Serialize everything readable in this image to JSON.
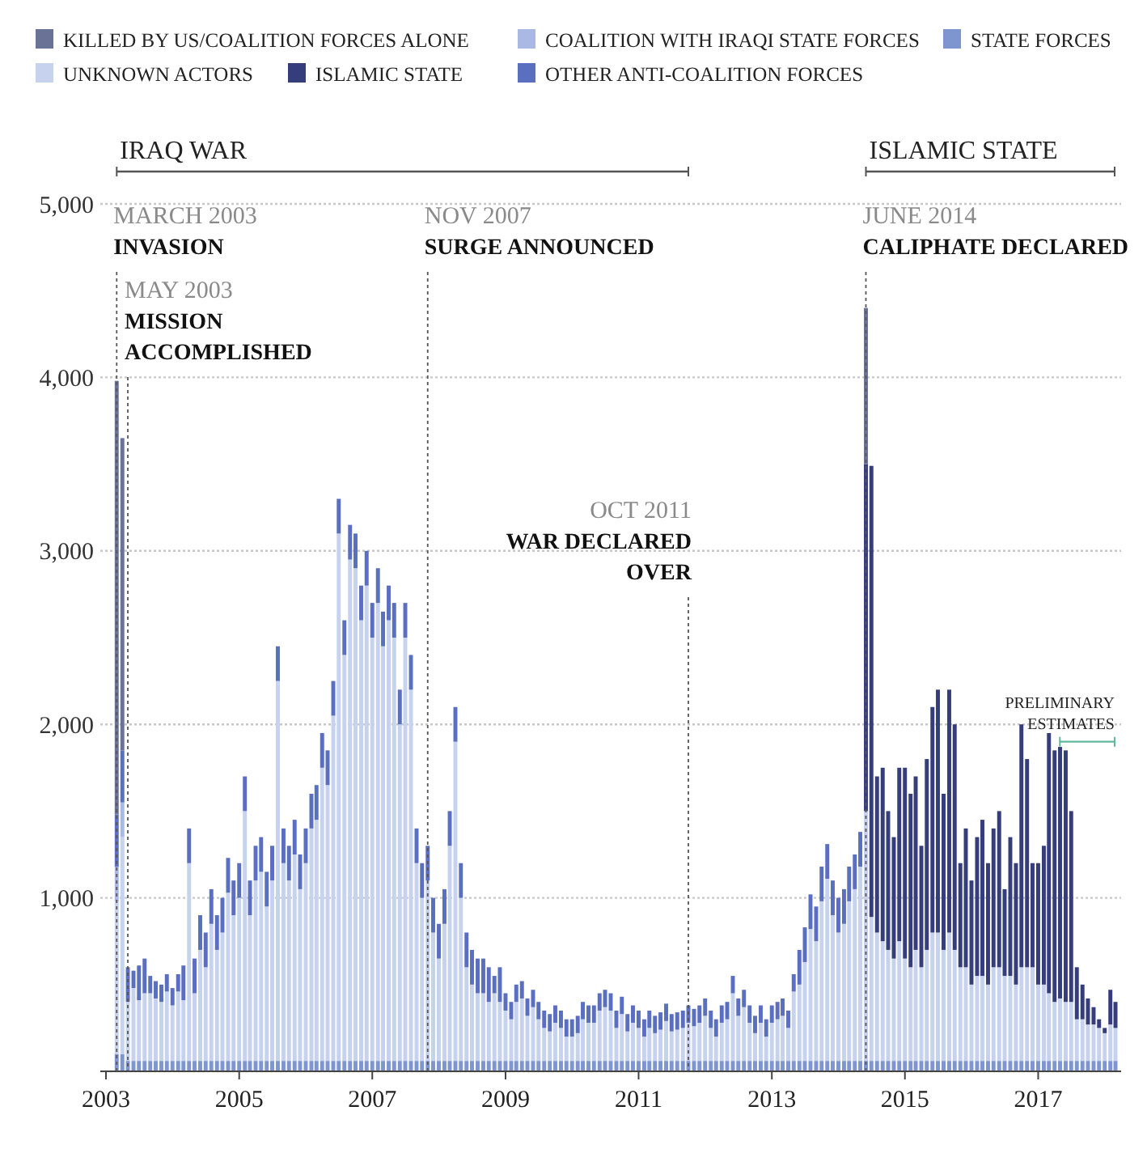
{
  "chart_data": {
    "type": "bar",
    "stacked": true,
    "x": [
      "2003-03",
      "2003-04",
      "2003-05",
      "2003-06",
      "2003-07",
      "2003-08",
      "2003-09",
      "2003-10",
      "2003-11",
      "2003-12",
      "2004-01",
      "2004-02",
      "2004-03",
      "2004-04",
      "2004-05",
      "2004-06",
      "2004-07",
      "2004-08",
      "2004-09",
      "2004-10",
      "2004-11",
      "2004-12",
      "2005-01",
      "2005-02",
      "2005-03",
      "2005-04",
      "2005-05",
      "2005-06",
      "2005-07",
      "2005-08",
      "2005-09",
      "2005-10",
      "2005-11",
      "2005-12",
      "2006-01",
      "2006-02",
      "2006-03",
      "2006-04",
      "2006-05",
      "2006-06",
      "2006-07",
      "2006-08",
      "2006-09",
      "2006-10",
      "2006-11",
      "2006-12",
      "2007-01",
      "2007-02",
      "2007-03",
      "2007-04",
      "2007-05",
      "2007-06",
      "2007-07",
      "2007-08",
      "2007-09",
      "2007-10",
      "2007-11",
      "2007-12",
      "2008-01",
      "2008-02",
      "2008-03",
      "2008-04",
      "2008-05",
      "2008-06",
      "2008-07",
      "2008-08",
      "2008-09",
      "2008-10",
      "2008-11",
      "2008-12",
      "2009-01",
      "2009-02",
      "2009-03",
      "2009-04",
      "2009-05",
      "2009-06",
      "2009-07",
      "2009-08",
      "2009-09",
      "2009-10",
      "2009-11",
      "2009-12",
      "2010-01",
      "2010-02",
      "2010-03",
      "2010-04",
      "2010-05",
      "2010-06",
      "2010-07",
      "2010-08",
      "2010-09",
      "2010-10",
      "2010-11",
      "2010-12",
      "2011-01",
      "2011-02",
      "2011-03",
      "2011-04",
      "2011-05",
      "2011-06",
      "2011-07",
      "2011-08",
      "2011-09",
      "2011-10",
      "2011-11",
      "2011-12",
      "2012-01",
      "2012-02",
      "2012-03",
      "2012-04",
      "2012-05",
      "2012-06",
      "2012-07",
      "2012-08",
      "2012-09",
      "2012-10",
      "2012-11",
      "2012-12",
      "2013-01",
      "2013-02",
      "2013-03",
      "2013-04",
      "2013-05",
      "2013-06",
      "2013-07",
      "2013-08",
      "2013-09",
      "2013-10",
      "2013-11",
      "2013-12",
      "2014-01",
      "2014-02",
      "2014-03",
      "2014-04",
      "2014-05",
      "2014-06",
      "2014-07",
      "2014-08",
      "2014-09",
      "2014-10",
      "2014-11",
      "2014-12",
      "2015-01",
      "2015-02",
      "2015-03",
      "2015-04",
      "2015-05",
      "2015-06",
      "2015-07",
      "2015-08",
      "2015-09",
      "2015-10",
      "2015-11",
      "2015-12",
      "2016-01",
      "2016-02",
      "2016-03",
      "2016-04",
      "2016-05",
      "2016-06",
      "2016-07",
      "2016-08",
      "2016-09",
      "2016-10",
      "2016-11",
      "2016-12",
      "2017-01",
      "2017-02",
      "2017-03",
      "2017-04",
      "2017-05",
      "2017-06",
      "2017-07",
      "2017-08",
      "2017-09",
      "2017-10",
      "2017-11",
      "2017-12",
      "2018-01",
      "2018-02",
      "2018-03"
    ],
    "series": [
      {
        "name": "STATE FORCES",
        "color": "#7f95d0",
        "values": [
          100,
          100,
          60,
          60,
          60,
          60,
          60,
          60,
          60,
          60,
          60,
          60,
          60,
          60,
          60,
          60,
          60,
          60,
          60,
          60,
          60,
          60,
          60,
          60,
          60,
          60,
          60,
          60,
          60,
          60,
          60,
          60,
          60,
          60,
          60,
          60,
          60,
          60,
          60,
          60,
          60,
          60,
          60,
          60,
          60,
          60,
          60,
          60,
          60,
          60,
          60,
          60,
          60,
          60,
          60,
          60,
          60,
          60,
          60,
          60,
          60,
          60,
          60,
          60,
          60,
          60,
          60,
          60,
          60,
          60,
          60,
          60,
          60,
          60,
          60,
          60,
          60,
          60,
          60,
          60,
          60,
          60,
          60,
          60,
          60,
          60,
          60,
          60,
          60,
          60,
          60,
          60,
          60,
          60,
          60,
          60,
          60,
          60,
          60,
          60,
          60,
          60,
          60,
          60,
          60,
          60,
          60,
          60,
          60,
          60,
          60,
          60,
          60,
          60,
          60,
          60,
          60,
          60,
          60,
          60,
          60,
          60,
          60,
          60,
          60,
          60,
          60,
          60,
          60,
          60,
          60,
          60,
          60,
          60,
          60,
          60,
          60,
          60,
          60,
          60,
          60,
          60,
          60,
          60,
          60,
          60,
          60,
          60,
          60,
          60,
          60,
          60,
          60,
          60,
          60,
          60,
          60,
          60,
          60,
          60,
          60,
          60,
          60,
          60,
          60,
          60,
          60,
          60,
          60,
          60,
          60,
          60,
          60,
          60,
          60,
          60,
          60,
          60,
          60,
          60,
          60
        ]
      },
      {
        "name": "UNKNOWN ACTORS",
        "color": "#c6d2ee",
        "values": [
          880,
          1250,
          340,
          420,
          350,
          390,
          390,
          360,
          340,
          400,
          320,
          400,
          350,
          1140,
          390,
          640,
          540,
          790,
          640,
          740,
          970,
          840,
          940,
          1440,
          840,
          1040,
          1090,
          890,
          1040,
          2190,
          1140,
          1040,
          1190,
          990,
          1140,
          1340,
          1390,
          1690,
          1590,
          1990,
          3040,
          2340,
          2890,
          2840,
          2540,
          2740,
          2440,
          2640,
          2390,
          2540,
          2440,
          1940,
          2440,
          2140,
          1140,
          940,
          1040,
          740,
          590,
          790,
          1240,
          1840,
          940,
          540,
          440,
          390,
          390,
          340,
          390,
          340,
          290,
          240,
          340,
          360,
          260,
          310,
          240,
          190,
          170,
          220,
          190,
          140,
          140,
          160,
          240,
          220,
          220,
          290,
          310,
          290,
          190,
          270,
          170,
          220,
          190,
          140,
          190,
          160,
          180,
          230,
          170,
          180,
          190,
          220,
          200,
          220,
          260,
          190,
          140,
          220,
          240,
          390,
          260,
          310,
          220,
          160,
          220,
          140,
          220,
          240,
          260,
          190,
          400,
          440,
          570,
          760,
          690,
          920,
          1050,
          840,
          740,
          790,
          920,
          990,
          1120,
          1440,
          830,
          740,
          690,
          640,
          590,
          690,
          590,
          540,
          640,
          540,
          640,
          740,
          740,
          640,
          740,
          640,
          540,
          540,
          440,
          490,
          490,
          440,
          540,
          540,
          490,
          490,
          440,
          540,
          540,
          540,
          440,
          440,
          390,
          340,
          360,
          340,
          340,
          240,
          240,
          210,
          210,
          190,
          160,
          210,
          190
        ]
      },
      {
        "name": "COALITION WITH IRAQI STATE FORCES",
        "color": "#a9b9e3",
        "values": [
          200,
          200,
          null,
          null,
          null,
          null,
          null,
          null,
          null,
          null,
          null,
          null,
          null,
          null,
          null,
          null,
          null,
          null,
          null,
          null,
          null,
          null,
          null,
          null,
          null,
          null,
          null,
          null,
          null,
          null,
          null,
          null,
          null,
          null,
          null,
          null,
          null,
          null,
          null,
          null,
          null,
          null,
          null,
          null,
          null,
          null,
          null,
          null,
          null,
          null,
          null,
          null,
          null,
          null,
          null,
          null,
          null,
          null,
          null,
          null,
          null,
          null,
          null,
          null,
          null,
          null,
          null,
          null,
          null,
          null,
          null,
          null,
          null,
          null,
          null,
          null,
          null,
          null,
          null,
          null,
          null,
          null,
          null,
          null,
          null,
          null,
          null,
          null,
          null,
          null,
          null,
          null,
          null,
          null,
          null,
          null,
          null,
          null,
          null,
          null,
          null,
          null,
          null,
          null,
          null,
          null,
          null,
          null,
          null,
          null,
          null,
          null,
          null,
          null,
          null,
          null,
          null,
          null,
          null,
          null,
          null,
          null,
          null,
          null,
          null,
          null,
          null,
          null,
          null,
          null,
          null,
          null,
          null,
          null,
          null,
          null,
          null,
          null,
          null,
          null,
          null,
          null,
          null,
          null,
          null,
          null,
          null,
          null,
          null,
          null,
          null,
          null,
          null,
          null,
          null,
          null,
          null,
          null,
          null,
          null,
          null,
          null,
          null,
          null,
          null,
          null,
          null,
          null,
          null,
          null,
          null,
          null,
          null,
          null,
          null,
          null,
          null,
          null,
          null,
          null,
          null
        ]
      },
      {
        "name": "OTHER ANTI-COALITION FORCES",
        "color": "#5a6fc0",
        "values": [
          300,
          300,
          200,
          100,
          200,
          200,
          100,
          100,
          100,
          100,
          100,
          100,
          200,
          200,
          200,
          200,
          200,
          200,
          200,
          200,
          200,
          200,
          200,
          200,
          200,
          200,
          200,
          200,
          200,
          200,
          200,
          200,
          200,
          200,
          200,
          200,
          200,
          200,
          200,
          200,
          200,
          200,
          200,
          200,
          200,
          200,
          200,
          200,
          200,
          200,
          200,
          200,
          200,
          200,
          200,
          200,
          200,
          200,
          200,
          200,
          200,
          200,
          200,
          200,
          200,
          200,
          200,
          200,
          100,
          200,
          100,
          100,
          100,
          100,
          100,
          100,
          100,
          100,
          100,
          100,
          100,
          100,
          100,
          100,
          100,
          100,
          100,
          100,
          100,
          100,
          100,
          100,
          100,
          100,
          100,
          100,
          100,
          100,
          100,
          100,
          100,
          100,
          100,
          100,
          100,
          100,
          100,
          100,
          100,
          100,
          100,
          100,
          100,
          100,
          100,
          100,
          100,
          100,
          100,
          100,
          100,
          100,
          100,
          200,
          200,
          200,
          200,
          200,
          200,
          200,
          200,
          200,
          200,
          200,
          200,
          null,
          null,
          null,
          null,
          null,
          null,
          null,
          null,
          null,
          null,
          null,
          null,
          null,
          null,
          null,
          null,
          null,
          null,
          null,
          null,
          null,
          null,
          null,
          null,
          null,
          null,
          null,
          null,
          null,
          null,
          null,
          null,
          null,
          null,
          null,
          null,
          null,
          null,
          null,
          null,
          null,
          null,
          null,
          null,
          null,
          null
        ]
      },
      {
        "name": "ISLAMIC STATE",
        "color": "#353d7a",
        "values": [
          null,
          null,
          null,
          null,
          null,
          null,
          null,
          null,
          null,
          null,
          null,
          null,
          null,
          null,
          null,
          null,
          null,
          null,
          null,
          null,
          null,
          null,
          null,
          null,
          null,
          null,
          null,
          null,
          null,
          null,
          null,
          null,
          null,
          null,
          null,
          null,
          null,
          null,
          null,
          null,
          null,
          null,
          null,
          null,
          null,
          null,
          null,
          null,
          null,
          null,
          null,
          null,
          null,
          null,
          null,
          null,
          null,
          null,
          null,
          null,
          null,
          null,
          null,
          null,
          null,
          null,
          null,
          null,
          null,
          null,
          null,
          null,
          null,
          null,
          null,
          null,
          null,
          null,
          null,
          null,
          null,
          null,
          null,
          null,
          null,
          null,
          null,
          null,
          null,
          null,
          null,
          null,
          null,
          null,
          null,
          null,
          null,
          null,
          null,
          null,
          null,
          null,
          null,
          null,
          null,
          null,
          null,
          null,
          null,
          null,
          null,
          null,
          null,
          null,
          null,
          null,
          null,
          null,
          null,
          null,
          null,
          null,
          null,
          null,
          null,
          null,
          null,
          null,
          null,
          null,
          null,
          null,
          null,
          null,
          null,
          2000,
          2600,
          900,
          1000,
          800,
          700,
          1000,
          1100,
          1000,
          1000,
          700,
          1100,
          1300,
          1400,
          900,
          1400,
          1300,
          600,
          800,
          600,
          800,
          900,
          700,
          800,
          900,
          500,
          800,
          700,
          1400,
          1200,
          600,
          700,
          800,
          1500,
          1450,
          1450,
          1450,
          1100,
          300,
          200,
          150,
          100,
          50,
          30,
          200,
          150
        ]
      },
      {
        "name": "KILLED BY US/COALITION FORCES ALONE",
        "color": "#6a7396",
        "values": [
          2500,
          1800,
          null,
          null,
          null,
          null,
          null,
          null,
          null,
          null,
          null,
          null,
          null,
          null,
          null,
          null,
          null,
          null,
          null,
          null,
          null,
          null,
          null,
          null,
          null,
          null,
          null,
          null,
          null,
          null,
          null,
          null,
          null,
          null,
          null,
          null,
          null,
          null,
          null,
          null,
          null,
          null,
          null,
          null,
          null,
          null,
          null,
          null,
          null,
          null,
          null,
          null,
          null,
          null,
          null,
          null,
          null,
          null,
          null,
          null,
          null,
          null,
          null,
          null,
          null,
          null,
          null,
          null,
          null,
          null,
          null,
          null,
          null,
          null,
          null,
          null,
          null,
          null,
          null,
          null,
          null,
          null,
          null,
          null,
          null,
          null,
          null,
          null,
          null,
          null,
          null,
          null,
          null,
          null,
          null,
          null,
          null,
          null,
          null,
          null,
          null,
          null,
          null,
          null,
          null,
          null,
          null,
          null,
          null,
          null,
          null,
          null,
          null,
          null,
          null,
          null,
          null,
          null,
          null,
          null,
          null,
          null,
          null,
          null,
          null,
          null,
          null,
          null,
          null,
          null,
          null,
          null,
          null,
          null,
          null,
          900,
          null,
          null,
          null,
          null,
          null,
          null,
          null,
          null,
          null,
          null,
          null,
          null,
          null,
          null,
          null,
          null,
          null,
          null,
          null,
          null,
          null,
          null,
          null,
          null,
          null,
          null,
          null,
          null,
          null,
          null,
          null,
          null,
          null,
          null,
          null,
          null,
          null,
          null,
          null,
          null,
          null,
          null,
          null,
          null,
          null
        ]
      }
    ],
    "xlim": [
      "2002-12",
      "2018-04"
    ],
    "xticks": [
      "2003",
      "2005",
      "2007",
      "2009",
      "2011",
      "2013",
      "2015",
      "2017"
    ],
    "ylim": [
      0,
      5000
    ],
    "yticks": [
      {
        "value": 0,
        "label": null
      },
      {
        "value": 1000,
        "label": "1,000"
      },
      {
        "value": 2000,
        "label": "2,000"
      },
      {
        "value": 3000,
        "label": "3,000"
      },
      {
        "value": 4000,
        "label": "4,000"
      },
      {
        "value": 5000,
        "label": "5,000"
      }
    ],
    "grid": "y",
    "legend": "top",
    "ref_lines": [
      {
        "axis": "x",
        "value": "2003-03",
        "label": "MARCH 2003\nINVASION"
      },
      {
        "axis": "x",
        "value": "2003-05",
        "label": "MAY 2003\nMISSION\nACCOMPLISHED"
      },
      {
        "axis": "x",
        "value": "2007-11",
        "label": "NOV 2007\nSURGE ANNOUNCED"
      },
      {
        "axis": "x",
        "value": "2011-10",
        "label": "OCT 2011\nWAR DECLARED\nOVER"
      },
      {
        "axis": "x",
        "value": "2014-06",
        "label": "JUNE 2014\nCALIPHATE DECLARED"
      }
    ],
    "annotations": [
      "IRAQ WAR",
      "ISLAMIC STATE",
      "PRELIMINARY\nESTIMATES"
    ]
  }
}
